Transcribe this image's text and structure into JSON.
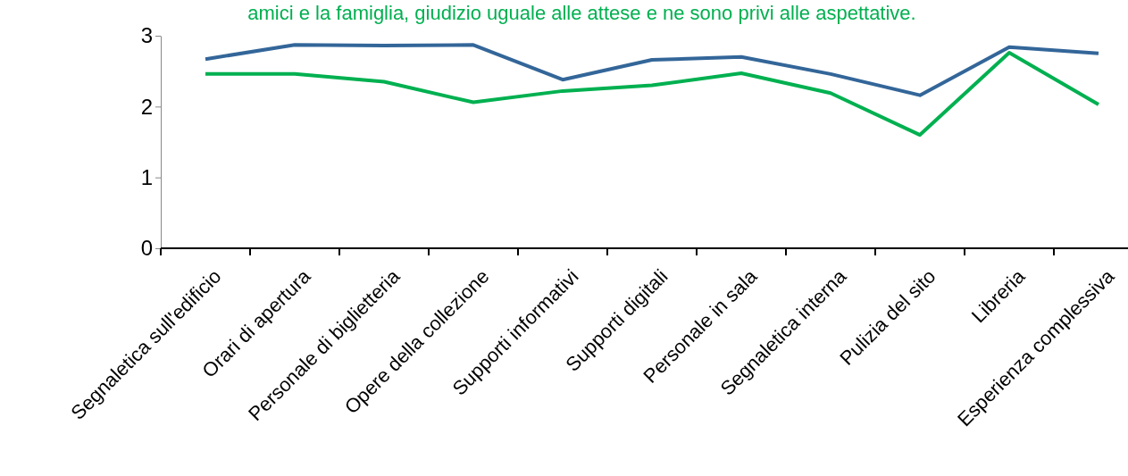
{
  "chart_data": {
    "type": "line",
    "title": "amici e la famiglia, giudizio uguale alle attese e ne sono privi alle aspettative.",
    "categories": [
      "Segnaletica sull'edificio",
      "Orari di apertura",
      "Personale di biglietteria",
      "Opere della collezione",
      "Supporti informativi",
      "Supporti digitali",
      "Personale in sala",
      "Segnaletica interna",
      "Pulizia del sito",
      "Libreria",
      "Esperienza complessiva"
    ],
    "series": [
      {
        "color": "#336699",
        "values": [
          2.67,
          2.87,
          2.86,
          2.87,
          2.38,
          2.66,
          2.7,
          2.46,
          2.16,
          2.84,
          2.75
        ]
      },
      {
        "color": "#00b050",
        "values": [
          2.46,
          2.46,
          2.35,
          2.06,
          2.22,
          2.3,
          2.47,
          2.19,
          1.6,
          2.76,
          2.03
        ]
      }
    ],
    "ylim": [
      0,
      3
    ],
    "yticks": [
      0,
      1,
      2,
      3
    ],
    "grid": false,
    "marker": "none",
    "line_style": "solid"
  }
}
